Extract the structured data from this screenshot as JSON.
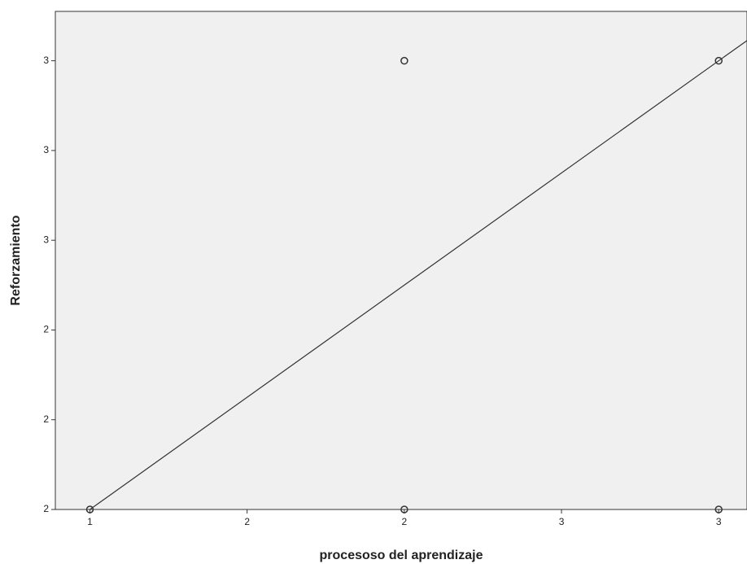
{
  "chart_data": {
    "type": "scatter",
    "xlabel": "procesoso del aprendizaje",
    "ylabel": "Reforzamiento",
    "x": [
      1,
      2,
      2,
      3,
      3
    ],
    "y": [
      2,
      2,
      3,
      3,
      2
    ],
    "fit_line": {
      "intercept": 1.5,
      "slope": 0.5
    },
    "xlim": [
      0.89,
      3.09
    ],
    "ylim": [
      2.0,
      3.11
    ],
    "xticks": [
      {
        "value": 1.0,
        "label": "1"
      },
      {
        "value": 1.5,
        "label": "2"
      },
      {
        "value": 2.0,
        "label": "2"
      },
      {
        "value": 2.5,
        "label": "3"
      },
      {
        "value": 3.0,
        "label": "3"
      }
    ],
    "yticks": [
      {
        "value": 2.0,
        "label": "2"
      },
      {
        "value": 2.2,
        "label": "2"
      },
      {
        "value": 2.4,
        "label": "2"
      },
      {
        "value": 2.6,
        "label": "3"
      },
      {
        "value": 2.8,
        "label": "3"
      },
      {
        "value": 3.0,
        "label": "3"
      }
    ],
    "background": "#f0f0f0",
    "marker_color": "#333333",
    "line_color": "#333333"
  }
}
